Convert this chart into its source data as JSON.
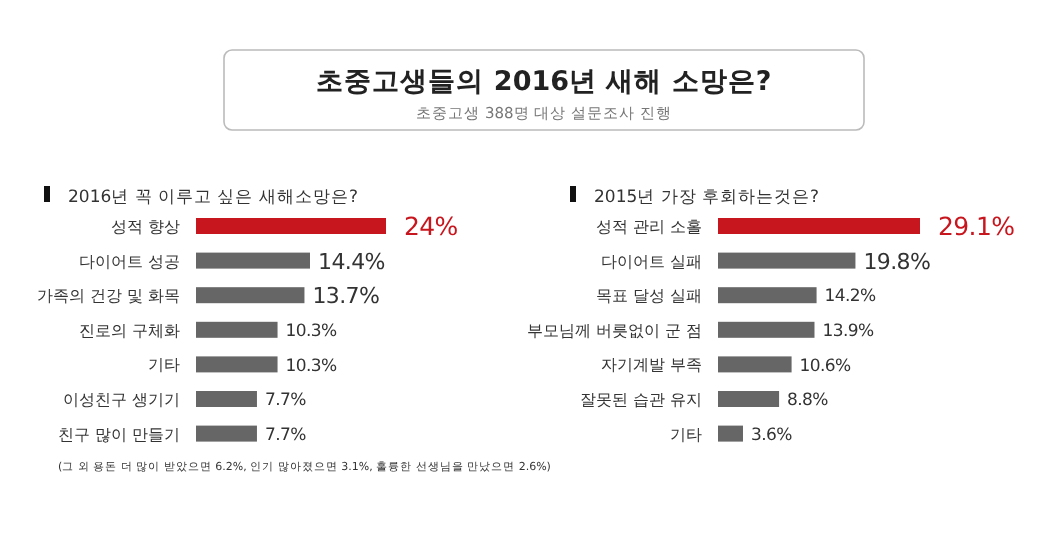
{
  "chart_data": [
    {
      "type": "other",
      "title": "초중고생들의 2016년 새해 소망은?",
      "subtitle": "초중고생 388명 대상 설문조사 진행"
    },
    {
      "type": "bar",
      "orientation": "horizontal",
      "title": "2016년 꼭 이루고 싶은 새해소망은?",
      "categories": [
        "성적 향상",
        "다이어트 성공",
        "가족의 건강 및 화목",
        "진로의 구체화",
        "기타",
        "이성친구 생기기",
        "친구 많이 만들기"
      ],
      "values": [
        24,
        14.4,
        13.7,
        10.3,
        10.3,
        7.7,
        7.7
      ],
      "colors": [
        "#c8161e",
        "#666666",
        "#666666",
        "#666666",
        "#666666",
        "#666666",
        "#666666"
      ],
      "value_labels": [
        "24%",
        "14.4%",
        "13.7%",
        "10.3%",
        "10.3%",
        "7.7%",
        "7.7%"
      ],
      "annotations": [
        "(그 외 용돈 더 많이 받았으면 6.2%, 인기 많아졌으면 3.1%, 훌륭한 선생님을 만났으면 2.6%)"
      ]
    },
    {
      "type": "bar",
      "orientation": "horizontal",
      "title": "2015년 가장 후회하는것은?",
      "categories": [
        "성적 관리 소홀",
        "다이어트 실패",
        "목표 달성 실패",
        "부모님께 버릇없이 군 점",
        "자기계발 부족",
        "잘못된 습관 유지",
        "기타"
      ],
      "values": [
        29.1,
        19.8,
        14.2,
        13.9,
        10.6,
        8.8,
        3.6
      ],
      "colors": [
        "#c8161e",
        "#666666",
        "#666666",
        "#666666",
        "#666666",
        "#666666",
        "#666666"
      ],
      "value_labels": [
        "29.1%",
        "19.8%",
        "14.2%",
        "13.9%",
        "10.6%",
        "8.8%",
        "3.6%"
      ]
    }
  ]
}
